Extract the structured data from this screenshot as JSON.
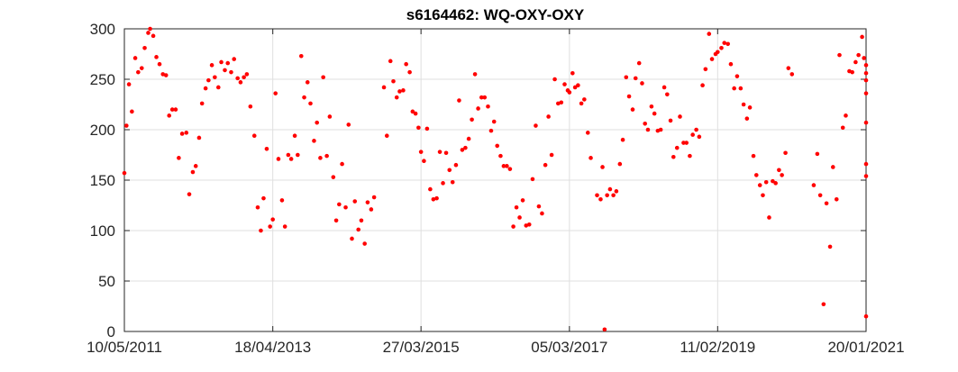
{
  "chart_data": {
    "type": "scatter",
    "title": "s6164462: WQ-OXY-OXY",
    "xlabel": "",
    "ylabel": "",
    "x_is_date": true,
    "xlim": [
      "2011-05-10",
      "2021-01-20"
    ],
    "ylim": [
      0,
      300
    ],
    "x_ticks": [
      {
        "date": "2011-05-10",
        "label": "10/05/2011"
      },
      {
        "date": "2013-04-18",
        "label": "18/04/2013"
      },
      {
        "date": "2015-03-27",
        "label": "27/03/2015"
      },
      {
        "date": "2017-03-05",
        "label": "05/03/2017"
      },
      {
        "date": "2019-02-11",
        "label": "11/02/2019"
      },
      {
        "date": "2021-01-20",
        "label": "20/01/2021"
      }
    ],
    "y_ticks": [
      0,
      50,
      100,
      150,
      200,
      250,
      300
    ],
    "grid": true,
    "marker_color": "#ff0000",
    "series": [
      {
        "points": [
          [
            "2011-05-10",
            157
          ],
          [
            "2011-05-20",
            204
          ],
          [
            "2011-06-01",
            245
          ],
          [
            "2011-06-15",
            218
          ],
          [
            "2011-07-01",
            271
          ],
          [
            "2011-07-15",
            257
          ],
          [
            "2011-08-01",
            261
          ],
          [
            "2011-08-15",
            281
          ],
          [
            "2011-09-01",
            296
          ],
          [
            "2011-09-10",
            300
          ],
          [
            "2011-09-25",
            293
          ],
          [
            "2011-10-10",
            272
          ],
          [
            "2011-10-25",
            265
          ],
          [
            "2011-11-10",
            255
          ],
          [
            "2011-11-25",
            254
          ],
          [
            "2011-12-10",
            214
          ],
          [
            "2011-12-25",
            220
          ],
          [
            "2012-01-10",
            220
          ],
          [
            "2012-01-25",
            172
          ],
          [
            "2012-02-10",
            196
          ],
          [
            "2012-03-01",
            197
          ],
          [
            "2012-03-15",
            136
          ],
          [
            "2012-04-01",
            158
          ],
          [
            "2012-04-15",
            164
          ],
          [
            "2012-05-01",
            192
          ],
          [
            "2012-05-15",
            226
          ],
          [
            "2012-06-01",
            241
          ],
          [
            "2012-06-15",
            249
          ],
          [
            "2012-07-01",
            264
          ],
          [
            "2012-07-15",
            252
          ],
          [
            "2012-08-01",
            242
          ],
          [
            "2012-08-15",
            267
          ],
          [
            "2012-09-01",
            259
          ],
          [
            "2012-09-15",
            266
          ],
          [
            "2012-10-01",
            257
          ],
          [
            "2012-10-15",
            270
          ],
          [
            "2012-11-01",
            251
          ],
          [
            "2012-11-15",
            247
          ],
          [
            "2012-12-01",
            252
          ],
          [
            "2012-12-15",
            255
          ],
          [
            "2013-01-01",
            223
          ],
          [
            "2013-01-20",
            194
          ],
          [
            "2013-02-05",
            123
          ],
          [
            "2013-02-20",
            100
          ],
          [
            "2013-03-05",
            132
          ],
          [
            "2013-03-20",
            181
          ],
          [
            "2013-04-05",
            104
          ],
          [
            "2013-04-18",
            111
          ],
          [
            "2013-05-01",
            236
          ],
          [
            "2013-05-15",
            171
          ],
          [
            "2013-06-01",
            130
          ],
          [
            "2013-06-15",
            104
          ],
          [
            "2013-07-01",
            175
          ],
          [
            "2013-07-15",
            171
          ],
          [
            "2013-08-01",
            194
          ],
          [
            "2013-08-15",
            175
          ],
          [
            "2013-09-01",
            273
          ],
          [
            "2013-09-15",
            232
          ],
          [
            "2013-10-01",
            247
          ],
          [
            "2013-10-15",
            226
          ],
          [
            "2013-11-01",
            189
          ],
          [
            "2013-11-15",
            207
          ],
          [
            "2013-12-01",
            172
          ],
          [
            "2013-12-15",
            252
          ],
          [
            "2014-01-01",
            174
          ],
          [
            "2014-01-15",
            213
          ],
          [
            "2014-02-01",
            153
          ],
          [
            "2014-02-15",
            110
          ],
          [
            "2014-03-01",
            126
          ],
          [
            "2014-03-15",
            166
          ],
          [
            "2014-04-01",
            123
          ],
          [
            "2014-04-15",
            205
          ],
          [
            "2014-05-01",
            92
          ],
          [
            "2014-05-15",
            129
          ],
          [
            "2014-06-01",
            101
          ],
          [
            "2014-06-15",
            110
          ],
          [
            "2014-07-01",
            87
          ],
          [
            "2014-07-15",
            128
          ],
          [
            "2014-08-01",
            121
          ],
          [
            "2014-08-15",
            133
          ],
          [
            "2014-10-01",
            242
          ],
          [
            "2014-10-15",
            194
          ],
          [
            "2014-11-01",
            268
          ],
          [
            "2014-11-15",
            248
          ],
          [
            "2014-12-01",
            232
          ],
          [
            "2014-12-15",
            238
          ],
          [
            "2015-01-01",
            239
          ],
          [
            "2015-01-15",
            265
          ],
          [
            "2015-02-01",
            257
          ],
          [
            "2015-02-15",
            218
          ],
          [
            "2015-03-01",
            216
          ],
          [
            "2015-03-15",
            202
          ],
          [
            "2015-03-27",
            178
          ],
          [
            "2015-04-10",
            169
          ],
          [
            "2015-04-25",
            201
          ],
          [
            "2015-05-10",
            141
          ],
          [
            "2015-05-25",
            131
          ],
          [
            "2015-06-10",
            132
          ],
          [
            "2015-06-25",
            178
          ],
          [
            "2015-07-10",
            147
          ],
          [
            "2015-07-25",
            177
          ],
          [
            "2015-08-10",
            160
          ],
          [
            "2015-08-25",
            148
          ],
          [
            "2015-09-10",
            165
          ],
          [
            "2015-09-25",
            229
          ],
          [
            "2015-10-10",
            180
          ],
          [
            "2015-10-25",
            182
          ],
          [
            "2015-11-10",
            191
          ],
          [
            "2015-11-25",
            210
          ],
          [
            "2015-12-10",
            255
          ],
          [
            "2015-12-25",
            221
          ],
          [
            "2016-01-10",
            232
          ],
          [
            "2016-01-25",
            232
          ],
          [
            "2016-02-10",
            223
          ],
          [
            "2016-02-25",
            199
          ],
          [
            "2016-03-10",
            208
          ],
          [
            "2016-03-25",
            184
          ],
          [
            "2016-04-10",
            174
          ],
          [
            "2016-04-25",
            164
          ],
          [
            "2016-05-10",
            164
          ],
          [
            "2016-05-25",
            161
          ],
          [
            "2016-06-10",
            104
          ],
          [
            "2016-06-25",
            123
          ],
          [
            "2016-07-10",
            113
          ],
          [
            "2016-07-25",
            130
          ],
          [
            "2016-08-10",
            105
          ],
          [
            "2016-08-25",
            106
          ],
          [
            "2016-09-10",
            151
          ],
          [
            "2016-09-25",
            204
          ],
          [
            "2016-10-10",
            124
          ],
          [
            "2016-10-25",
            117
          ],
          [
            "2016-11-10",
            165
          ],
          [
            "2016-11-25",
            213
          ],
          [
            "2016-12-10",
            175
          ],
          [
            "2016-12-25",
            250
          ],
          [
            "2017-01-10",
            226
          ],
          [
            "2017-01-25",
            227
          ],
          [
            "2017-02-10",
            245
          ],
          [
            "2017-02-25",
            239
          ],
          [
            "2017-03-05",
            237
          ],
          [
            "2017-03-20",
            256
          ],
          [
            "2017-04-01",
            242
          ],
          [
            "2017-04-15",
            244
          ],
          [
            "2017-05-01",
            226
          ],
          [
            "2017-05-15",
            230
          ],
          [
            "2017-06-01",
            197
          ],
          [
            "2017-06-15",
            172
          ],
          [
            "2017-07-15",
            135
          ],
          [
            "2017-08-01",
            131
          ],
          [
            "2017-08-10",
            163
          ],
          [
            "2017-08-20",
            2
          ],
          [
            "2017-09-01",
            135
          ],
          [
            "2017-09-15",
            141
          ],
          [
            "2017-10-01",
            135
          ],
          [
            "2017-10-15",
            139
          ],
          [
            "2017-11-01",
            166
          ],
          [
            "2017-11-15",
            190
          ],
          [
            "2017-12-01",
            252
          ],
          [
            "2017-12-15",
            233
          ],
          [
            "2018-01-01",
            220
          ],
          [
            "2018-01-15",
            251
          ],
          [
            "2018-02-01",
            266
          ],
          [
            "2018-02-15",
            246
          ],
          [
            "2018-03-01",
            206
          ],
          [
            "2018-03-15",
            200
          ],
          [
            "2018-04-01",
            223
          ],
          [
            "2018-04-15",
            216
          ],
          [
            "2018-05-01",
            199
          ],
          [
            "2018-05-15",
            200
          ],
          [
            "2018-06-01",
            242
          ],
          [
            "2018-06-15",
            235
          ],
          [
            "2018-07-01",
            209
          ],
          [
            "2018-07-15",
            173
          ],
          [
            "2018-08-01",
            182
          ],
          [
            "2018-08-15",
            213
          ],
          [
            "2018-09-01",
            187
          ],
          [
            "2018-09-15",
            187
          ],
          [
            "2018-10-01",
            174
          ],
          [
            "2018-10-15",
            195
          ],
          [
            "2018-11-01",
            200
          ],
          [
            "2018-11-15",
            193
          ],
          [
            "2018-12-01",
            244
          ],
          [
            "2018-12-15",
            260
          ],
          [
            "2019-01-01",
            295
          ],
          [
            "2019-01-15",
            270
          ],
          [
            "2019-02-01",
            275
          ],
          [
            "2019-02-11",
            277
          ],
          [
            "2019-03-01",
            281
          ],
          [
            "2019-03-15",
            286
          ],
          [
            "2019-04-01",
            285
          ],
          [
            "2019-04-15",
            265
          ],
          [
            "2019-05-01",
            241
          ],
          [
            "2019-05-15",
            253
          ],
          [
            "2019-06-01",
            241
          ],
          [
            "2019-06-15",
            225
          ],
          [
            "2019-07-01",
            211
          ],
          [
            "2019-07-15",
            222
          ],
          [
            "2019-08-01",
            174
          ],
          [
            "2019-08-15",
            155
          ],
          [
            "2019-09-01",
            145
          ],
          [
            "2019-09-15",
            135
          ],
          [
            "2019-10-01",
            148
          ],
          [
            "2019-10-15",
            113
          ],
          [
            "2019-11-01",
            149
          ],
          [
            "2019-11-15",
            147
          ],
          [
            "2019-12-01",
            160
          ],
          [
            "2019-12-15",
            155
          ],
          [
            "2020-01-01",
            177
          ],
          [
            "2020-01-15",
            261
          ],
          [
            "2020-02-01",
            255
          ],
          [
            "2020-05-15",
            145
          ],
          [
            "2020-06-01",
            176
          ],
          [
            "2020-06-15",
            135
          ],
          [
            "2020-07-01",
            27
          ],
          [
            "2020-07-15",
            127
          ],
          [
            "2020-08-01",
            84
          ],
          [
            "2020-08-15",
            163
          ],
          [
            "2020-09-01",
            131
          ],
          [
            "2020-09-15",
            274
          ],
          [
            "2020-10-01",
            202
          ],
          [
            "2020-10-15",
            214
          ],
          [
            "2020-11-01",
            258
          ],
          [
            "2020-11-15",
            257
          ],
          [
            "2020-12-01",
            267
          ],
          [
            "2020-12-15",
            274
          ],
          [
            "2021-01-01",
            292
          ],
          [
            "2021-01-10",
            271
          ],
          [
            "2021-01-20",
            264
          ],
          [
            "2021-02-01",
            249
          ],
          [
            "2021-02-10",
            236
          ],
          [
            "2021-02-20",
            256
          ],
          [
            "2021-03-01",
            207
          ],
          [
            "2021-03-10",
            15
          ],
          [
            "2021-03-20",
            166
          ],
          [
            "2021-03-31",
            154
          ]
        ]
      }
    ]
  }
}
